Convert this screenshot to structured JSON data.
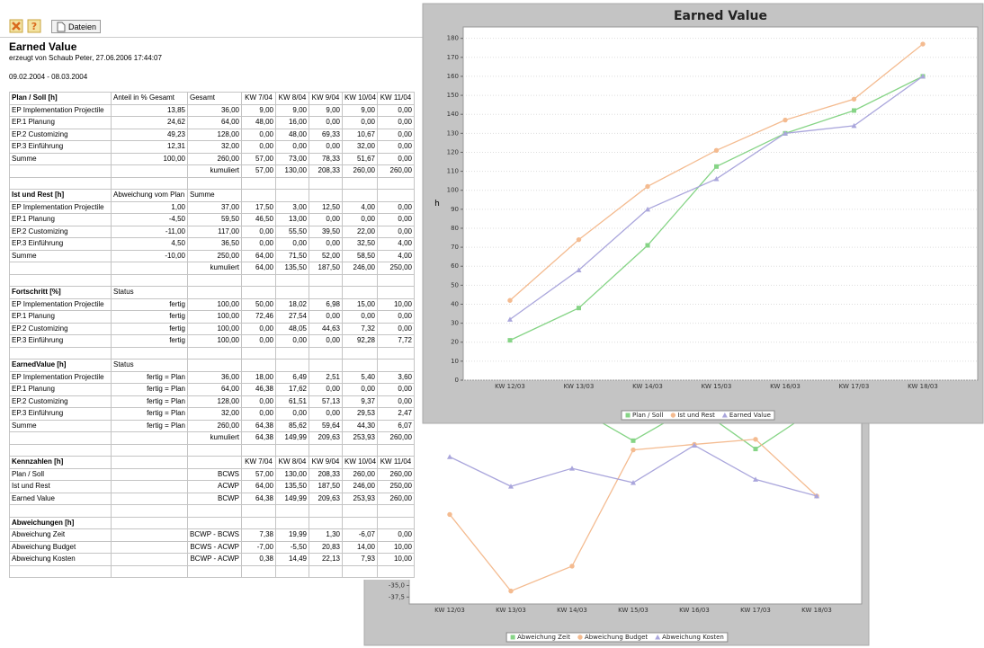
{
  "toolbar": {
    "button": "Dateien"
  },
  "report": {
    "title": "Earned Value",
    "subtitle": "erzeugt von Schaub Peter, 27.06.2006 17:44:07",
    "period": "09.02.2004 - 08.03.2004"
  },
  "table": {
    "sections": [
      {
        "header": [
          "Plan / Soll [h]",
          "Anteil in % Gesamt",
          "Gesamt",
          "KW 7/04",
          "KW 8/04",
          "KW 9/04",
          "KW 10/04",
          "KW 11/04"
        ],
        "rows": [
          [
            "EP Implementation Projectile",
            "13,85",
            "36,00",
            "9,00",
            "9,00",
            "9,00",
            "9,00",
            "0,00"
          ],
          [
            "EP.1 Planung",
            "24,62",
            "64,00",
            "48,00",
            "16,00",
            "0,00",
            "0,00",
            "0,00"
          ],
          [
            "EP.2 Customizing",
            "49,23",
            "128,00",
            "0,00",
            "48,00",
            "69,33",
            "10,67",
            "0,00"
          ],
          [
            "EP.3 Einführung",
            "12,31",
            "32,00",
            "0,00",
            "0,00",
            "0,00",
            "32,00",
            "0,00"
          ],
          [
            "Summe",
            "100,00",
            "260,00",
            "57,00",
            "73,00",
            "78,33",
            "51,67",
            "0,00"
          ],
          [
            null,
            null,
            "kumuliert",
            "57,00",
            "130,00",
            "208,33",
            "260,00",
            "260,00"
          ]
        ]
      },
      {
        "header": [
          "Ist und Rest [h]",
          "Abweichung vom Plan",
          "Summe",
          null,
          null,
          null,
          null,
          null
        ],
        "rows": [
          [
            "EP Implementation Projectile",
            "1,00",
            "37,00",
            "17,50",
            "3,00",
            "12,50",
            "4,00",
            "0,00"
          ],
          [
            "EP.1 Planung",
            "-4,50",
            "59,50",
            "46,50",
            "13,00",
            "0,00",
            "0,00",
            "0,00"
          ],
          [
            "EP.2 Customizing",
            "-11,00",
            "117,00",
            "0,00",
            "55,50",
            "39,50",
            "22,00",
            "0,00"
          ],
          [
            "EP.3 Einführung",
            "4,50",
            "36,50",
            "0,00",
            "0,00",
            "0,00",
            "32,50",
            "4,00"
          ],
          [
            "Summe",
            "-10,00",
            "250,00",
            "64,00",
            "71,50",
            "52,00",
            "58,50",
            "4,00"
          ],
          [
            null,
            null,
            "kumuliert",
            "64,00",
            "135,50",
            "187,50",
            "246,00",
            "250,00"
          ]
        ]
      },
      {
        "header": [
          "Fortschritt [%]",
          "Status",
          null,
          null,
          null,
          null,
          null,
          null
        ],
        "rows": [
          [
            "EP Implementation Projectile",
            "fertig",
            "100,00",
            "50,00",
            "18,02",
            "6,98",
            "15,00",
            "10,00"
          ],
          [
            "EP.1 Planung",
            "fertig",
            "100,00",
            "72,46",
            "27,54",
            "0,00",
            "0,00",
            "0,00"
          ],
          [
            "EP.2 Customizing",
            "fertig",
            "100,00",
            "0,00",
            "48,05",
            "44,63",
            "7,32",
            "0,00"
          ],
          [
            "EP.3 Einführung",
            "fertig",
            "100,00",
            "0,00",
            "0,00",
            "0,00",
            "92,28",
            "7,72"
          ]
        ]
      },
      {
        "header": [
          "EarnedValue [h]",
          "Status",
          null,
          null,
          null,
          null,
          null,
          null
        ],
        "rows": [
          [
            "EP Implementation Projectile",
            "fertig = Plan",
            "36,00",
            "18,00",
            "6,49",
            "2,51",
            "5,40",
            "3,60"
          ],
          [
            "EP.1 Planung",
            "fertig = Plan",
            "64,00",
            "46,38",
            "17,62",
            "0,00",
            "0,00",
            "0,00"
          ],
          [
            "EP.2 Customizing",
            "fertig = Plan",
            "128,00",
            "0,00",
            "61,51",
            "57,13",
            "9,37",
            "0,00"
          ],
          [
            "EP.3 Einführung",
            "fertig = Plan",
            "32,00",
            "0,00",
            "0,00",
            "0,00",
            "29,53",
            "2,47"
          ],
          [
            "Summe",
            "fertig = Plan",
            "260,00",
            "64,38",
            "85,62",
            "59,64",
            "44,30",
            "6,07"
          ],
          [
            null,
            null,
            "kumuliert",
            "64,38",
            "149,99",
            "209,63",
            "253,93",
            "260,00"
          ]
        ]
      },
      {
        "header": [
          "Kennzahlen [h]",
          null,
          null,
          "KW 7/04",
          "KW 8/04",
          "KW 9/04",
          "KW 10/04",
          "KW 11/04"
        ],
        "rows": [
          [
            "Plan / Soll",
            null,
            "BCWS",
            "57,00",
            "130,00",
            "208,33",
            "260,00",
            "260,00"
          ],
          [
            "Ist und Rest",
            null,
            "ACWP",
            "64,00",
            "135,50",
            "187,50",
            "246,00",
            "250,00"
          ],
          [
            "Earned Value",
            null,
            "BCWP",
            "64,38",
            "149,99",
            "209,63",
            "253,93",
            "260,00"
          ]
        ]
      },
      {
        "header": [
          "Abweichungen [h]",
          null,
          null,
          null,
          null,
          null,
          null,
          null
        ],
        "rows": [
          [
            "Abweichung Zeit",
            null,
            "BCWP - BCWS",
            "7,38",
            "19,99",
            "1,30",
            "-6,07",
            "0,00"
          ],
          [
            "Abweichung Budget",
            null,
            "BCWS - ACWP",
            "-7,00",
            "-5,50",
            "20,83",
            "14,00",
            "10,00"
          ],
          [
            "Abweichung Kosten",
            null,
            "BCWP - ACWP",
            "0,38",
            "14,49",
            "22,13",
            "7,93",
            "10,00"
          ]
        ]
      }
    ]
  },
  "chart_data": [
    {
      "type": "line",
      "title": "Earned Value",
      "ylabel": "h",
      "categories": [
        "KW 12/03",
        "KW 13/03",
        "KW 14/03",
        "KW 15/03",
        "KW 16/03",
        "KW 17/03",
        "KW 18/03"
      ],
      "ylim": [
        0,
        186
      ],
      "yticks": [
        0,
        10,
        20,
        30,
        40,
        50,
        60,
        70,
        80,
        90,
        100,
        110,
        120,
        130,
        140,
        150,
        160,
        170,
        180
      ],
      "grid": true,
      "legend": "bottom",
      "series": [
        {
          "name": "Plan / Soll",
          "color": "#86d486",
          "marker": "square",
          "values": [
            21,
            38,
            71,
            112.5,
            130,
            142,
            160
          ]
        },
        {
          "name": "Ist und Rest",
          "color": "#f4bb90",
          "marker": "circle",
          "values": [
            42,
            74,
            102,
            121,
            137,
            148,
            177
          ]
        },
        {
          "name": "Earned Value",
          "color": "#aaa6dc",
          "marker": "triangle",
          "values": [
            32,
            58,
            90,
            106,
            130,
            134,
            160
          ]
        }
      ]
    },
    {
      "type": "line",
      "categories": [
        "KW 12/03",
        "KW 13/03",
        "KW 14/03",
        "KW 15/03",
        "KW 16/03",
        "KW 17/03",
        "KW 18/03"
      ],
      "ylim": [
        -39,
        14
      ],
      "yticks": [
        {
          "value": -35,
          "label": "-35,0"
        },
        {
          "value": -37.5,
          "label": "-37,5"
        }
      ],
      "grid": false,
      "legend": "bottom",
      "series": [
        {
          "name": "Abweichung Zeit",
          "color": "#86d486",
          "marker": "square",
          "values": [
            7,
            10,
            4,
            -3.6,
            4,
            -5.4,
            3.4
          ]
        },
        {
          "name": "Abweichung Budget",
          "color": "#f4bb90",
          "marker": "circle",
          "values": [
            -19.6,
            -36.2,
            -30.8,
            -5.6,
            -4.4,
            -3.3,
            -15.6
          ]
        },
        {
          "name": "Abweichung Kosten",
          "color": "#aaa6dc",
          "marker": "triangle",
          "values": [
            -7.1,
            -13.5,
            -9.6,
            -12.7,
            -4.6,
            -12.0,
            -15.6
          ]
        }
      ]
    }
  ]
}
